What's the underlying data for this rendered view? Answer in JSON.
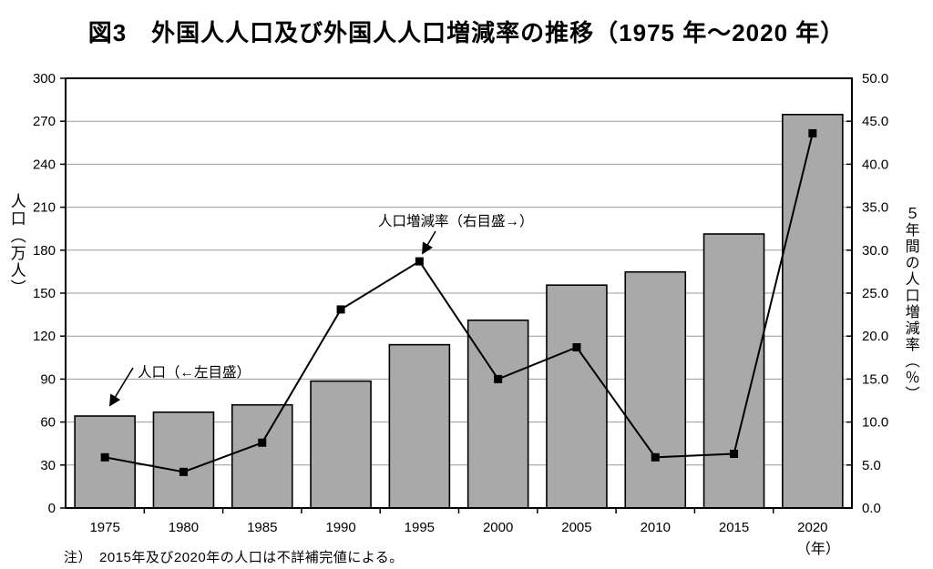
{
  "header": {
    "title": "図3　外国人人口及び外国人人口増減率の推移（1975 年～2020 年）"
  },
  "chart_data": {
    "type": "bar",
    "subtype": "bar+line combo",
    "title": "図3 外国人人口及び外国人人口増減率の推移（1975年～2020年）",
    "categories": [
      "1975",
      "1980",
      "1985",
      "1990",
      "1995",
      "2000",
      "2005",
      "2010",
      "2015",
      "2020"
    ],
    "series": [
      {
        "name": "外国人人口",
        "type": "bar",
        "axis": "left",
        "unit": "万人",
        "values": [
          64.2,
          66.9,
          72.0,
          88.6,
          114.0,
          131.1,
          155.6,
          164.8,
          191.3,
          274.7
        ]
      },
      {
        "name": "外国人人口増減率",
        "type": "line",
        "axis": "right",
        "unit": "%",
        "values": [
          5.9,
          4.2,
          7.6,
          23.1,
          28.7,
          15.0,
          18.7,
          5.9,
          6.3,
          43.6
        ]
      }
    ],
    "left_axis": {
      "label": "人口（万人）",
      "min": 0,
      "max": 300,
      "step": 30,
      "tick_values": [
        0,
        30,
        60,
        90,
        120,
        150,
        180,
        210,
        240,
        270,
        300
      ],
      "tick_labels": [
        "0",
        "30",
        "60",
        "90",
        "120",
        "150",
        "180",
        "210",
        "240",
        "270",
        "300"
      ]
    },
    "right_axis": {
      "label": "５年間の人口増減率（％）",
      "min": 0,
      "max": 50,
      "step": 5,
      "tick_values": [
        0,
        5,
        10,
        15,
        20,
        25,
        30,
        35,
        40,
        45,
        50
      ],
      "tick_labels": [
        "0.0",
        "5.0",
        "10.0",
        "15.0",
        "20.0",
        "25.0",
        "30.0",
        "35.0",
        "40.0",
        "45.0",
        "50.0"
      ]
    },
    "x_axis": {
      "unit_label": "（年）"
    },
    "annotations": [
      {
        "text": "人口（←左目盛）",
        "points_to": "1975 bar top"
      },
      {
        "text": "人口増減率（右目盛→）",
        "points_to": "1995 line marker"
      }
    ],
    "legend": "none",
    "grid": "horizontal",
    "colors": {
      "bar_fill": "#a9a9a9",
      "bar_border": "#000000",
      "line": "#000000",
      "marker": "#000000",
      "grid": "#999999",
      "frame": "#000000"
    }
  },
  "note": "注）　2015年及び2020年の人口は不詳補完値による。"
}
